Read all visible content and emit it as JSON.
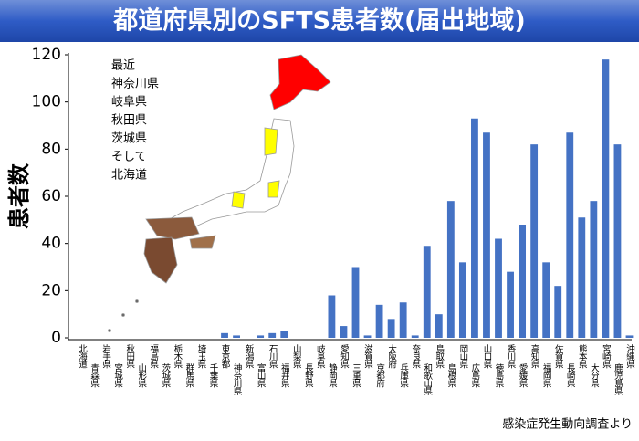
{
  "chart_data": {
    "type": "bar",
    "title": "都道府県別のSFTS患者数(届出地域)",
    "y_label": "患者数",
    "source": "感染症発生動向調査より",
    "annotation": [
      "最近",
      "神奈川県",
      "岐阜県",
      "秋田県",
      "茨城県",
      "そして",
      "北海道"
    ],
    "categories": [
      "北海道",
      "青森県",
      "岩手県",
      "宮城県",
      "秋田県",
      "山形県",
      "福島県",
      "茨城県",
      "栃木県",
      "群馬県",
      "埼玉県",
      "千葉県",
      "東京都",
      "神奈川県",
      "新潟県",
      "富山県",
      "石川県",
      "福井県",
      "山梨県",
      "長野県",
      "岐阜県",
      "静岡県",
      "愛知県",
      "三重県",
      "滋賀県",
      "京都府",
      "大阪府",
      "兵庫県",
      "奈良県",
      "和歌山県",
      "鳥取県",
      "島根県",
      "岡山県",
      "広島県",
      "山口県",
      "徳島県",
      "香川県",
      "愛媛県",
      "高知県",
      "福岡県",
      "佐賀県",
      "長崎県",
      "熊本県",
      "大分県",
      "宮崎県",
      "鹿児島県",
      "沖縄県"
    ],
    "values": [
      0,
      0,
      0,
      0,
      0,
      0,
      0,
      0,
      0,
      0,
      0,
      0,
      2,
      1,
      0,
      1,
      2,
      3,
      0,
      0,
      0,
      18,
      5,
      30,
      1,
      14,
      8,
      15,
      1,
      39,
      10,
      58,
      32,
      93,
      87,
      42,
      28,
      48,
      82,
      32,
      22,
      87,
      51,
      58,
      118,
      82,
      1
    ],
    "color": "#4472c4",
    "ylim": [
      0,
      120
    ],
    "yticks": [
      0,
      20,
      40,
      60,
      80,
      100,
      120
    ],
    "grid": false
  }
}
